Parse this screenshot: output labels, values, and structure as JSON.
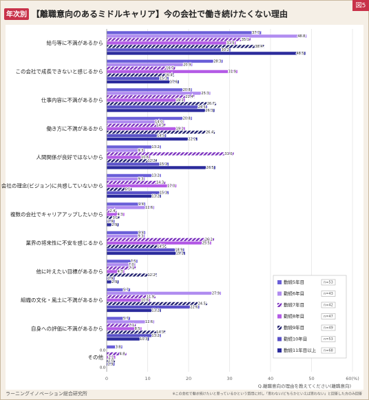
{
  "chart_data": {
    "type": "hbar",
    "badge": "年次別",
    "title": "【離職意向のあるミドルキャリア】今の会社で働き続けたくない理由",
    "figure_label": "図5",
    "categories": [
      "給与等に不満があるから",
      "この会社で成長できないと感じるから",
      "仕事内容に不満があるから",
      "働き方に不満があるから",
      "人間関係が良好ではないから",
      "会社の理念(ビジョン)に共感していないから",
      "複数の会社でキャリアアップしたいから",
      "業界の将来性に不安を感じるから",
      "他に叶えたい目標があるから",
      "組織の文化・風土に不満があるから",
      "自身への評価に不満があるから",
      "その他"
    ],
    "series": [
      {
        "name": "勤続5年目",
        "n": "n=53",
        "color": "#6a5fd8",
        "hatched": false,
        "values": [
          37.7,
          28.3,
          20.8,
          20.8,
          13.2,
          13.2,
          9.4,
          9.4,
          7.5,
          5.7,
          5.7,
          3.8
        ],
        "value_labels": [
          "37.7",
          "28.3",
          "20.8",
          "20.8",
          "13.2",
          "13.2",
          "9.4",
          "9.4",
          "7.5",
          "5.7",
          "5.7",
          "3.8"
        ]
      },
      {
        "name": "勤続6年目",
        "n": "n=43",
        "color": "#b08cf0",
        "hatched": false,
        "values": [
          48.8,
          20.9,
          25.3,
          14.0,
          9.3,
          9.3,
          11.6,
          9.3,
          7.0,
          27.9,
          11.6,
          0
        ],
        "value_labels": [
          "48.8",
          "20.9",
          "25.3",
          "14.0",
          "9.3",
          "9.3",
          "11.6",
          "9.3",
          "7.0",
          "27.9",
          "11.6",
          "0.0"
        ]
      },
      {
        "name": "勤続7年目",
        "n": "n=42",
        "color": "#7a2fbe",
        "hatched": true,
        "values": [
          35.1,
          16.7,
          21.4,
          14.3,
          31.0,
          14.3,
          2.4,
          26.2,
          7.1,
          11.9,
          7.1,
          4.8
        ],
        "value_labels": [
          "35.1",
          "16.7",
          "21.4",
          "14.3",
          "31.0",
          "14.3",
          "2.4",
          "26.2",
          "7.1",
          "11.9",
          "7.1",
          "4.8"
        ]
      },
      {
        "name": "勤続8年目",
        "n": "n=47",
        "color": "#b45be6",
        "hatched": false,
        "values": [
          31.5,
          31.9,
          19.1,
          19.1,
          10.6,
          17.0,
          4.3,
          25.5,
          4.3,
          10.6,
          8.5,
          2.1
        ],
        "value_labels": [
          "31.5",
          "31.9",
          "19.1",
          "19.1",
          "10.6",
          "17.0",
          "4.3",
          "25.5",
          "4.3",
          "10.6",
          "8.5",
          "2.1"
        ]
      },
      {
        "name": "勤続9年目",
        "n": "n=49",
        "color": "#1f1f6e",
        "hatched": true,
        "values": [
          38.4,
          16.4,
          26.7,
          26.4,
          12.2,
          6.1,
          3.1,
          14.5,
          12.2,
          24.5,
          14.3,
          2.0
        ],
        "value_labels": [
          "38.4",
          "16.4",
          "26.7",
          "26.4",
          "12.2",
          "6.1",
          "3.1",
          "14.5",
          "12.2",
          "24.5",
          "14.3",
          "2.0"
        ]
      },
      {
        "name": "勤続10年目",
        "n": "n=53",
        "color": "#5a52c8",
        "hatched": false,
        "values": [
          30.2,
          15.1,
          24.5,
          14.5,
          15.1,
          15.1,
          1.9,
          18.9,
          1.9,
          22.6,
          13.2,
          1.9
        ],
        "value_labels": [
          "30.2",
          "15.1",
          "24.5",
          "14.5",
          "15.1",
          "15.1",
          "1.9",
          "18.9",
          "1.9",
          "22.6",
          "13.2",
          "1.9"
        ]
      },
      {
        "name": "勤続11年目以上",
        "n": "n=68",
        "color": "#2b2b9c",
        "hatched": false,
        "values": [
          48.5,
          17.6,
          26.3,
          22.1,
          26.5,
          13.2,
          2.9,
          19.1,
          2.9,
          13.2,
          10.3,
          0
        ],
        "value_labels": [
          "48.5",
          "17.6",
          "26.3",
          "22.1",
          "26.5",
          "13.2",
          "2.9",
          "19.1",
          "2.9",
          "13.2",
          "10.3",
          "0.0"
        ]
      }
    ],
    "xlim": [
      0,
      60
    ],
    "xticks": [
      0,
      10,
      20,
      30,
      40,
      50,
      {
        "value": 60,
        "label": "60(%)"
      }
    ],
    "question": "Q.離職意向の理由を教えてください(離職意向)",
    "note": "※この会社で働き続けたいと思っているかという質問に対し「思わない/どちらかといえば思わない」と回答した方のみ回答",
    "source": "ラーニングイノベーション総合研究所"
  }
}
